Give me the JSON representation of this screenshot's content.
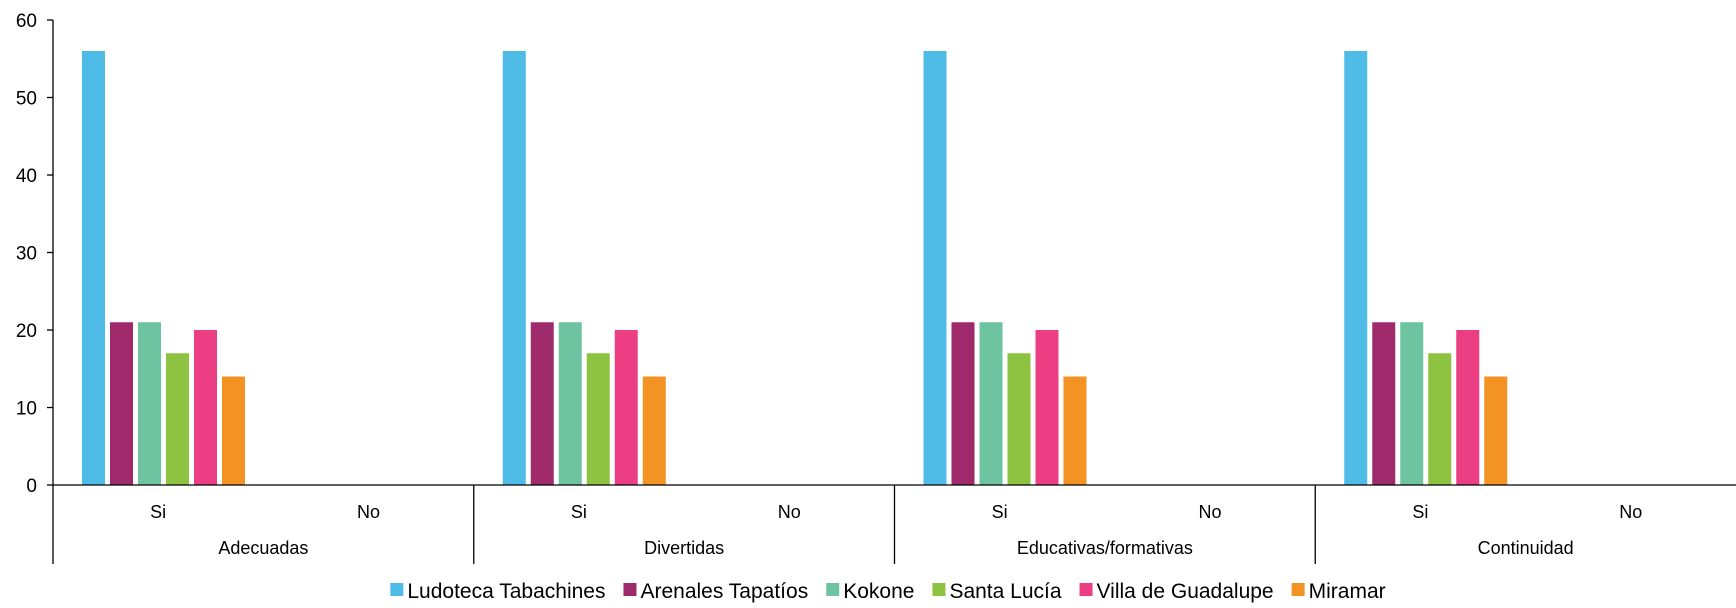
{
  "chart_data": {
    "type": "bar",
    "title": "",
    "xlabel": "",
    "ylabel": "",
    "ylim": [
      0,
      60
    ],
    "yticks": [
      0,
      10,
      20,
      30,
      40,
      50,
      60
    ],
    "grid": false,
    "legend_position": "bottom",
    "groups": [
      {
        "label": "Adecuadas",
        "categories": [
          "Si",
          "No"
        ]
      },
      {
        "label": "Divertidas",
        "categories": [
          "Si",
          "No"
        ]
      },
      {
        "label": "Educativas/formativas",
        "categories": [
          "Si",
          "No"
        ]
      },
      {
        "label": "Continuidad",
        "categories": [
          "Si",
          "No"
        ]
      }
    ],
    "categories": [
      "Si",
      "No",
      "Si",
      "No",
      "Si",
      "No",
      "Si",
      "No"
    ],
    "series": [
      {
        "name": "Ludoteca Tabachines",
        "color": "#4EBCE6",
        "values": [
          56,
          0,
          56,
          0,
          56,
          0,
          56,
          0
        ]
      },
      {
        "name": "Arenales Tapatíos",
        "color": "#9E2A6B",
        "values": [
          21,
          0,
          21,
          0,
          21,
          0,
          21,
          0
        ]
      },
      {
        "name": "Kokone",
        "color": "#6EC4A1",
        "values": [
          21,
          0,
          21,
          0,
          21,
          0,
          21,
          0
        ]
      },
      {
        "name": "Santa Lucía",
        "color": "#8DC340",
        "values": [
          17,
          0,
          17,
          0,
          17,
          0,
          17,
          0
        ]
      },
      {
        "name": "Villa de Guadalupe",
        "color": "#EC3F83",
        "values": [
          20,
          0,
          20,
          0,
          20,
          0,
          20,
          0
        ]
      },
      {
        "name": "Miramar",
        "color": "#F39323",
        "values": [
          14,
          0,
          14,
          0,
          14,
          0,
          14,
          0
        ]
      }
    ]
  }
}
